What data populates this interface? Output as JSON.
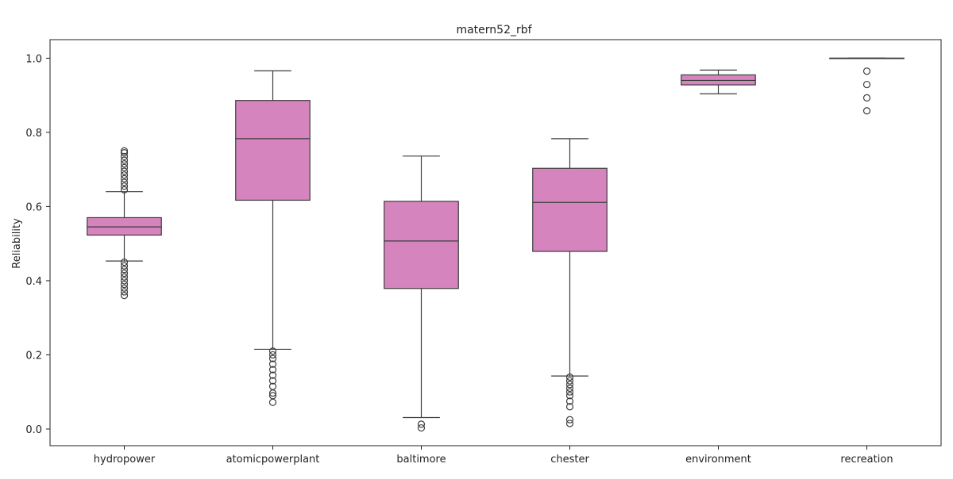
{
  "chart_data": {
    "type": "box",
    "title": "matern52_rbf",
    "xlabel": "",
    "ylabel": "Reliability",
    "ylim": [
      -0.045,
      1.05
    ],
    "yticks": [
      0.0,
      0.2,
      0.4,
      0.6,
      0.8,
      1.0
    ],
    "ytick_labels": [
      "0.0",
      "0.2",
      "0.4",
      "0.6",
      "0.8",
      "1.0"
    ],
    "grid": false,
    "box_color": "#d684be",
    "line_color": "#3d3d3d",
    "series": [
      {
        "category": "hydropower",
        "whisker_low": 0.453,
        "q1": 0.523,
        "median": 0.545,
        "q3": 0.57,
        "whisker_high": 0.64,
        "outliers": [
          0.36,
          0.37,
          0.38,
          0.39,
          0.4,
          0.41,
          0.42,
          0.43,
          0.44,
          0.45,
          0.645,
          0.655,
          0.665,
          0.675,
          0.685,
          0.695,
          0.705,
          0.715,
          0.725,
          0.735,
          0.745,
          0.75
        ]
      },
      {
        "category": "atomicpowerplant",
        "whisker_low": 0.215,
        "q1": 0.617,
        "median": 0.783,
        "q3": 0.886,
        "whisker_high": 0.966,
        "outliers": [
          0.072,
          0.09,
          0.097,
          0.115,
          0.13,
          0.145,
          0.16,
          0.175,
          0.19,
          0.2,
          0.21
        ]
      },
      {
        "category": "baltimore",
        "whisker_low": 0.031,
        "q1": 0.379,
        "median": 0.507,
        "q3": 0.614,
        "whisker_high": 0.736,
        "outliers": [
          0.003,
          0.013
        ]
      },
      {
        "category": "chester",
        "whisker_low": 0.143,
        "q1": 0.479,
        "median": 0.611,
        "q3": 0.703,
        "whisker_high": 0.783,
        "outliers": [
          0.015,
          0.025,
          0.06,
          0.075,
          0.09,
          0.1,
          0.11,
          0.12,
          0.13,
          0.14
        ]
      },
      {
        "category": "environment",
        "whisker_low": 0.904,
        "q1": 0.928,
        "median": 0.94,
        "q3": 0.955,
        "whisker_high": 0.968,
        "outliers": []
      },
      {
        "category": "recreation",
        "whisker_low": 1.0,
        "q1": 1.0,
        "median": 1.0,
        "q3": 1.0,
        "whisker_high": 1.0,
        "outliers": [
          0.858,
          0.893,
          0.929,
          0.965
        ]
      }
    ]
  }
}
